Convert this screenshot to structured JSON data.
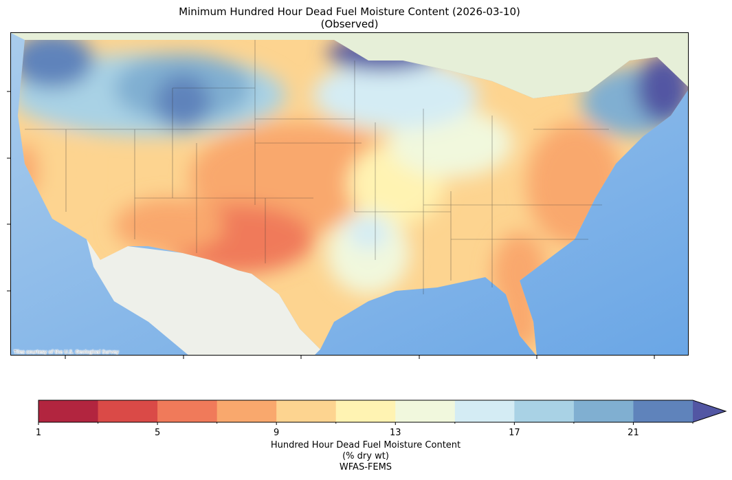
{
  "title": {
    "line1": "Minimum Hundred Hour Dead Fuel Moisture Content (2026-03-10)",
    "line2": "(Observed)"
  },
  "map": {
    "attribution": "Tiles courtesy of the U.S. Geological Survey",
    "region": "Contiguous United States"
  },
  "colorbar": {
    "bounds": [
      1,
      3,
      5,
      7,
      9,
      11,
      13,
      15,
      17,
      19,
      21,
      23
    ],
    "colors": [
      "#b2253f",
      "#da4a47",
      "#f07a5a",
      "#f9a86d",
      "#fdd490",
      "#fff3b2",
      "#f1f8dd",
      "#d4ecf4",
      "#a9d2e5",
      "#80afd1",
      "#5f83bb"
    ],
    "extend_max_color": "#5256a3",
    "tick_labels": [
      "1",
      "5",
      "9",
      "13",
      "17",
      "21"
    ],
    "label_line1": "Hundred Hour Dead Fuel Moisture Content",
    "label_line2": "(% dry wt)",
    "label_line3": "WFAS-FEMS"
  }
}
